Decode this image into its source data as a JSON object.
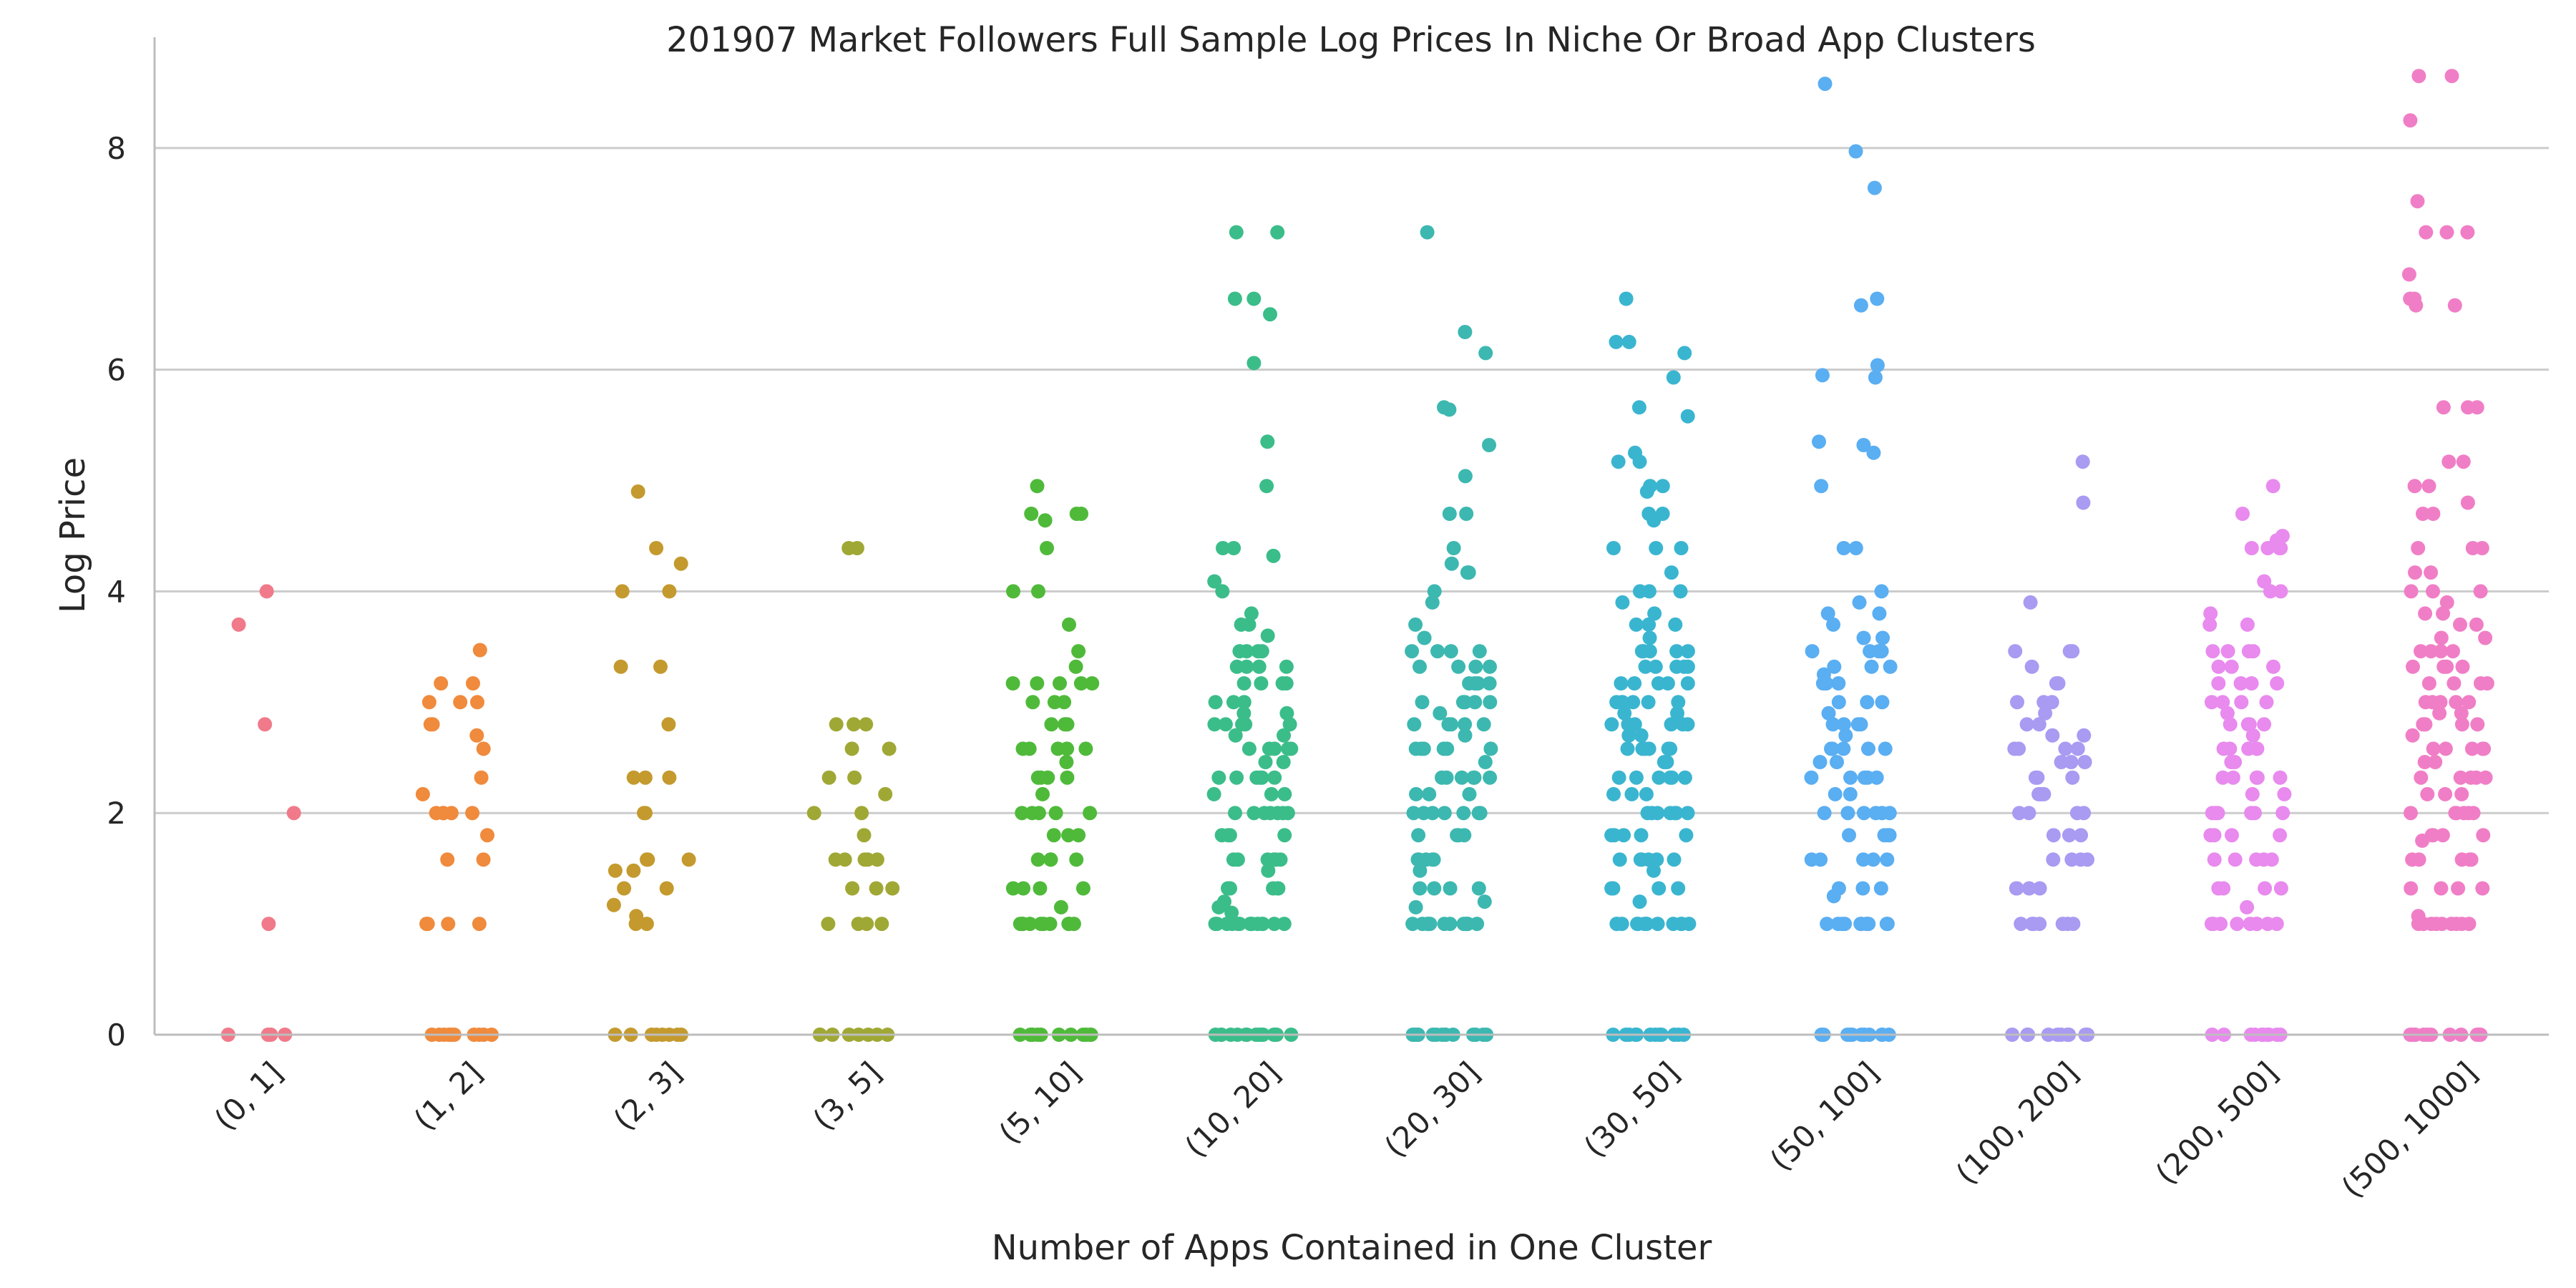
{
  "chart_data": {
    "type": "scatter",
    "subtype": "strip",
    "title": "201907 Market Followers Full Sample Log Prices In Niche Or Broad App Clusters",
    "xlabel": "Number of Apps Contained in One Cluster",
    "ylabel": "Log Price",
    "ylim": [
      0,
      9.0
    ],
    "yticks": [
      0,
      2,
      4,
      6,
      8
    ],
    "grid": "horizontal",
    "legend": "none",
    "categories": [
      "(0, 1]",
      "(1, 2]",
      "(2, 3]",
      "(3, 5]",
      "(5, 10]",
      "(10, 20]",
      "(20, 30]",
      "(30, 50]",
      "(50, 100]",
      "(100, 200]",
      "(200, 500]",
      "(500, 1000]"
    ],
    "colors": [
      "#f07a8a",
      "#f08a3c",
      "#c49a2e",
      "#a0a835",
      "#4fba3a",
      "#3bbd8a",
      "#3cb8b0",
      "#3ab5d0",
      "#5aaef2",
      "#a99af2",
      "#e88aee",
      "#f07ec6"
    ],
    "series": [
      {
        "category": "(0, 1]",
        "values": [
          4.0,
          3.7,
          2.8,
          2.0,
          1.0,
          0,
          0,
          0,
          0
        ]
      },
      {
        "category": "(1, 2]",
        "values": [
          3.47,
          3.17,
          3.17,
          3.0,
          3.0,
          3.0,
          2.8,
          2.8,
          2.7,
          2.58,
          2.32,
          2.17,
          2.0,
          2.0,
          2.0,
          2.0,
          2.0,
          1.8,
          1.58,
          1.58,
          1.0,
          1.0,
          1.0,
          1.0,
          0,
          0,
          0,
          0,
          0,
          0,
          0,
          0,
          0,
          0
        ]
      },
      {
        "category": "(2, 3]",
        "values": [
          4.9,
          4.39,
          4.25,
          4.0,
          4.0,
          3.32,
          3.32,
          2.8,
          2.32,
          2.32,
          2.32,
          2.0,
          2.0,
          1.58,
          1.58,
          1.58,
          1.48,
          1.48,
          1.32,
          1.32,
          1.17,
          1.07,
          1.0,
          1.0,
          0,
          0,
          0,
          0,
          0,
          0,
          0,
          0
        ]
      },
      {
        "category": "(3, 5]",
        "values": [
          4.39,
          4.39,
          2.8,
          2.8,
          2.8,
          2.58,
          2.58,
          2.32,
          2.32,
          2.17,
          2.0,
          2.0,
          1.8,
          1.58,
          1.58,
          1.58,
          1.58,
          1.58,
          1.32,
          1.32,
          1.32,
          1.0,
          1.0,
          1.0,
          1.0,
          0,
          0,
          0,
          0,
          0,
          0,
          0,
          0
        ]
      },
      {
        "category": "(5, 10]",
        "values": [
          4.95,
          4.7,
          4.7,
          4.7,
          4.64,
          4.39,
          4.0,
          4.0,
          3.7,
          3.46,
          3.32,
          3.17,
          3.17,
          3.17,
          3.17,
          3.17,
          3.0,
          3.0,
          3.0,
          2.8,
          2.8,
          2.8,
          2.8,
          2.58,
          2.58,
          2.58,
          2.58,
          2.58,
          2.46,
          2.32,
          2.32,
          2.32,
          2.32,
          2.17,
          2.0,
          2.0,
          2.0,
          2.0,
          2.0,
          1.8,
          1.8,
          1.8,
          1.58,
          1.58,
          1.58,
          1.58,
          1.32,
          1.32,
          1.32,
          1.32,
          1.15,
          1.0,
          1.0,
          1.0,
          1.0,
          1.0,
          1.0,
          1.0,
          1.0,
          1.0,
          1.0,
          1.0,
          0,
          0,
          0,
          0,
          0,
          0,
          0,
          0,
          0,
          0,
          0,
          0
        ]
      },
      {
        "category": "(10, 20]",
        "values": [
          7.24,
          7.24,
          6.64,
          6.64,
          6.5,
          6.06,
          5.35,
          4.95,
          4.39,
          4.39,
          4.32,
          4.09,
          4.0,
          3.8,
          3.7,
          3.7,
          3.6,
          3.46,
          3.46,
          3.46,
          3.46,
          3.32,
          3.32,
          3.32,
          3.32,
          3.17,
          3.17,
          3.17,
          3.17,
          3.0,
          3.0,
          3.0,
          2.9,
          2.9,
          2.8,
          2.8,
          2.8,
          2.8,
          2.8,
          2.7,
          2.7,
          2.58,
          2.58,
          2.58,
          2.58,
          2.58,
          2.46,
          2.46,
          2.32,
          2.32,
          2.32,
          2.32,
          2.32,
          2.32,
          2.17,
          2.17,
          2.17,
          2.0,
          2.0,
          2.0,
          2.0,
          2.0,
          2.0,
          2.0,
          1.8,
          1.8,
          1.8,
          1.8,
          1.58,
          1.58,
          1.58,
          1.58,
          1.58,
          1.58,
          1.48,
          1.32,
          1.32,
          1.32,
          1.32,
          1.32,
          1.2,
          1.15,
          1.1,
          1.0,
          1.0,
          1.0,
          1.0,
          1.0,
          1.0,
          1.0,
          1.0,
          1.0,
          1.0,
          1.0,
          1.0,
          1.0,
          1.0,
          0,
          0,
          0,
          0,
          0,
          0,
          0,
          0,
          0,
          0,
          0,
          0,
          0,
          0,
          0,
          0
        ]
      },
      {
        "category": "(20, 30]",
        "values": [
          7.24,
          6.34,
          6.15,
          5.66,
          5.64,
          5.32,
          5.04,
          4.7,
          4.7,
          4.39,
          4.25,
          4.17,
          4.17,
          4.0,
          3.9,
          3.7,
          3.58,
          3.46,
          3.46,
          3.46,
          3.46,
          3.32,
          3.32,
          3.32,
          3.32,
          3.17,
          3.17,
          3.17,
          3.17,
          3.0,
          3.0,
          3.0,
          3.0,
          3.0,
          2.9,
          2.8,
          2.8,
          2.8,
          2.8,
          2.8,
          2.7,
          2.58,
          2.58,
          2.58,
          2.58,
          2.58,
          2.58,
          2.46,
          2.32,
          2.32,
          2.32,
          2.32,
          2.32,
          2.32,
          2.17,
          2.17,
          2.17,
          2.0,
          2.0,
          2.0,
          2.0,
          2.0,
          2.0,
          2.0,
          1.8,
          1.8,
          1.8,
          1.8,
          1.58,
          1.58,
          1.58,
          1.58,
          1.58,
          1.48,
          1.32,
          1.32,
          1.32,
          1.32,
          1.2,
          1.15,
          1.0,
          1.0,
          1.0,
          1.0,
          1.0,
          1.0,
          1.0,
          1.0,
          1.0,
          1.0,
          1.0,
          1.0,
          0,
          0,
          0,
          0,
          0,
          0,
          0,
          0,
          0,
          0,
          0,
          0,
          0,
          0
        ]
      },
      {
        "category": "(30, 50]",
        "values": [
          6.64,
          6.25,
          6.25,
          6.15,
          5.93,
          5.66,
          5.58,
          5.25,
          5.17,
          5.17,
          4.95,
          4.95,
          4.9,
          4.7,
          4.7,
          4.64,
          4.39,
          4.39,
          4.39,
          4.17,
          4.0,
          4.0,
          4.0,
          3.9,
          3.8,
          3.7,
          3.7,
          3.7,
          3.58,
          3.46,
          3.46,
          3.46,
          3.46,
          3.46,
          3.32,
          3.32,
          3.32,
          3.32,
          3.32,
          3.17,
          3.17,
          3.17,
          3.17,
          3.17,
          3.0,
          3.0,
          3.0,
          3.0,
          3.0,
          3.0,
          2.9,
          2.9,
          2.8,
          2.8,
          2.8,
          2.8,
          2.8,
          2.8,
          2.7,
          2.7,
          2.58,
          2.58,
          2.58,
          2.58,
          2.58,
          2.58,
          2.46,
          2.46,
          2.32,
          2.32,
          2.32,
          2.32,
          2.32,
          2.32,
          2.17,
          2.17,
          2.17,
          2.0,
          2.0,
          2.0,
          2.0,
          2.0,
          2.0,
          2.0,
          1.8,
          1.8,
          1.8,
          1.8,
          1.8,
          1.58,
          1.58,
          1.58,
          1.58,
          1.58,
          1.58,
          1.48,
          1.32,
          1.32,
          1.32,
          1.32,
          1.32,
          1.2,
          1.0,
          1.0,
          1.0,
          1.0,
          1.0,
          1.0,
          1.0,
          1.0,
          1.0,
          1.0,
          1.0,
          1.0,
          1.0,
          0,
          0,
          0,
          0,
          0,
          0,
          0,
          0,
          0,
          0,
          0,
          0,
          0,
          0
        ]
      },
      {
        "category": "(50, 100]",
        "values": [
          8.58,
          7.97,
          7.64,
          6.64,
          6.58,
          6.04,
          5.95,
          5.93,
          5.35,
          5.32,
          5.25,
          4.95,
          4.39,
          4.39,
          4.0,
          3.9,
          3.8,
          3.8,
          3.7,
          3.58,
          3.58,
          3.46,
          3.46,
          3.46,
          3.46,
          3.32,
          3.32,
          3.32,
          3.25,
          3.17,
          3.17,
          3.17,
          3.0,
          3.0,
          3.0,
          2.9,
          2.8,
          2.8,
          2.8,
          2.8,
          2.7,
          2.58,
          2.58,
          2.58,
          2.58,
          2.58,
          2.46,
          2.46,
          2.32,
          2.32,
          2.32,
          2.32,
          2.32,
          2.17,
          2.17,
          2.0,
          2.0,
          2.0,
          2.0,
          2.0,
          2.0,
          1.8,
          1.8,
          1.8,
          1.8,
          1.58,
          1.58,
          1.58,
          1.58,
          1.58,
          1.32,
          1.32,
          1.32,
          1.25,
          1.0,
          1.0,
          1.0,
          1.0,
          1.0,
          1.0,
          1.0,
          1.0,
          1.0,
          1.0,
          1.0,
          0,
          0,
          0,
          0,
          0,
          0,
          0,
          0,
          0,
          0,
          0
        ]
      },
      {
        "category": "(100, 200]",
        "values": [
          5.17,
          4.8,
          3.9,
          3.46,
          3.46,
          3.46,
          3.32,
          3.17,
          3.17,
          3.0,
          3.0,
          3.0,
          2.9,
          2.8,
          2.8,
          2.7,
          2.7,
          2.58,
          2.58,
          2.58,
          2.58,
          2.46,
          2.46,
          2.46,
          2.32,
          2.32,
          2.32,
          2.17,
          2.17,
          2.17,
          2.0,
          2.0,
          2.0,
          2.0,
          1.8,
          1.8,
          1.8,
          1.58,
          1.58,
          1.58,
          1.58,
          1.32,
          1.32,
          1.32,
          1.32,
          1.0,
          1.0,
          1.0,
          1.0,
          1.0,
          1.0,
          1.0,
          0,
          0,
          0,
          0,
          0,
          0,
          0,
          0,
          0,
          0
        ]
      },
      {
        "category": "(200, 500]",
        "values": [
          4.95,
          4.7,
          4.5,
          4.46,
          4.39,
          4.39,
          4.39,
          4.39,
          4.09,
          4.0,
          4.0,
          3.8,
          3.7,
          3.7,
          3.46,
          3.46,
          3.46,
          3.46,
          3.32,
          3.32,
          3.32,
          3.17,
          3.17,
          3.17,
          3.17,
          3.0,
          3.0,
          3.0,
          3.0,
          2.9,
          2.8,
          2.8,
          2.8,
          2.8,
          2.7,
          2.58,
          2.58,
          2.58,
          2.58,
          2.58,
          2.46,
          2.46,
          2.32,
          2.32,
          2.32,
          2.32,
          2.32,
          2.17,
          2.17,
          2.0,
          2.0,
          2.0,
          2.0,
          2.0,
          2.0,
          1.8,
          1.8,
          1.8,
          1.8,
          1.58,
          1.58,
          1.58,
          1.58,
          1.58,
          1.32,
          1.32,
          1.32,
          1.32,
          1.15,
          1.0,
          1.0,
          1.0,
          1.0,
          1.0,
          1.0,
          1.0,
          1.0,
          1.0,
          0,
          0,
          0,
          0,
          0,
          0,
          0,
          0,
          0,
          0
        ]
      },
      {
        "category": "(500, 1000]",
        "values": [
          8.65,
          8.65,
          8.25,
          7.52,
          7.24,
          7.24,
          7.24,
          6.86,
          6.64,
          6.64,
          6.58,
          6.58,
          5.66,
          5.66,
          5.66,
          5.17,
          5.17,
          4.95,
          4.95,
          4.8,
          4.7,
          4.7,
          4.39,
          4.39,
          4.39,
          4.17,
          4.17,
          4.0,
          4.0,
          4.0,
          3.9,
          3.8,
          3.8,
          3.7,
          3.7,
          3.58,
          3.58,
          3.46,
          3.46,
          3.46,
          3.46,
          3.32,
          3.32,
          3.32,
          3.32,
          3.17,
          3.17,
          3.17,
          3.17,
          3.0,
          3.0,
          3.0,
          3.0,
          3.0,
          2.9,
          2.9,
          2.8,
          2.8,
          2.8,
          2.8,
          2.8,
          2.7,
          2.58,
          2.58,
          2.58,
          2.58,
          2.58,
          2.46,
          2.46,
          2.32,
          2.32,
          2.32,
          2.32,
          2.32,
          2.17,
          2.17,
          2.17,
          2.0,
          2.0,
          2.0,
          2.0,
          2.0,
          2.0,
          1.8,
          1.8,
          1.8,
          1.8,
          1.75,
          1.58,
          1.58,
          1.58,
          1.58,
          1.58,
          1.32,
          1.32,
          1.32,
          1.32,
          1.07,
          1.0,
          1.0,
          1.0,
          1.0,
          1.0,
          1.0,
          1.0,
          1.0,
          1.0,
          1.0,
          0,
          0,
          0,
          0,
          0,
          0,
          0,
          0,
          0,
          0,
          0,
          0
        ]
      }
    ]
  }
}
